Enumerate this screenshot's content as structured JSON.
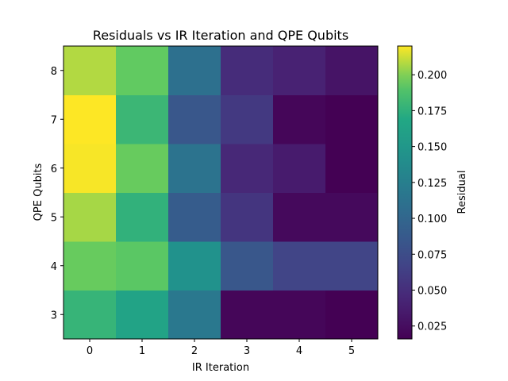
{
  "chart_data": {
    "type": "heatmap",
    "title": "Residuals vs IR Iteration and QPE Qubits",
    "xlabel": "IR Iteration",
    "ylabel": "QPE Qubits",
    "x": [
      0,
      1,
      2,
      3,
      4,
      5
    ],
    "y": [
      3,
      4,
      5,
      6,
      7,
      8
    ],
    "values": [
      [
        0.178,
        0.163,
        0.118,
        0.02,
        0.02,
        0.016
      ],
      [
        0.196,
        0.193,
        0.145,
        0.085,
        0.068,
        0.068
      ],
      [
        0.206,
        0.176,
        0.09,
        0.055,
        0.022,
        0.022
      ],
      [
        0.219,
        0.196,
        0.113,
        0.045,
        0.035,
        0.016
      ],
      [
        0.22,
        0.18,
        0.085,
        0.058,
        0.02,
        0.016
      ],
      [
        0.208,
        0.195,
        0.11,
        0.048,
        0.04,
        0.03
      ]
    ],
    "colormap": "viridis",
    "colorbar": {
      "label": "Residual",
      "range": [
        0.016,
        0.22
      ],
      "ticks": [
        0.025,
        0.05,
        0.075,
        0.1,
        0.125,
        0.15,
        0.175,
        0.2
      ],
      "tick_labels": [
        "0.025",
        "0.050",
        "0.075",
        "0.100",
        "0.125",
        "0.150",
        "0.175",
        "0.200"
      ]
    },
    "grid": false,
    "legend": "none"
  }
}
